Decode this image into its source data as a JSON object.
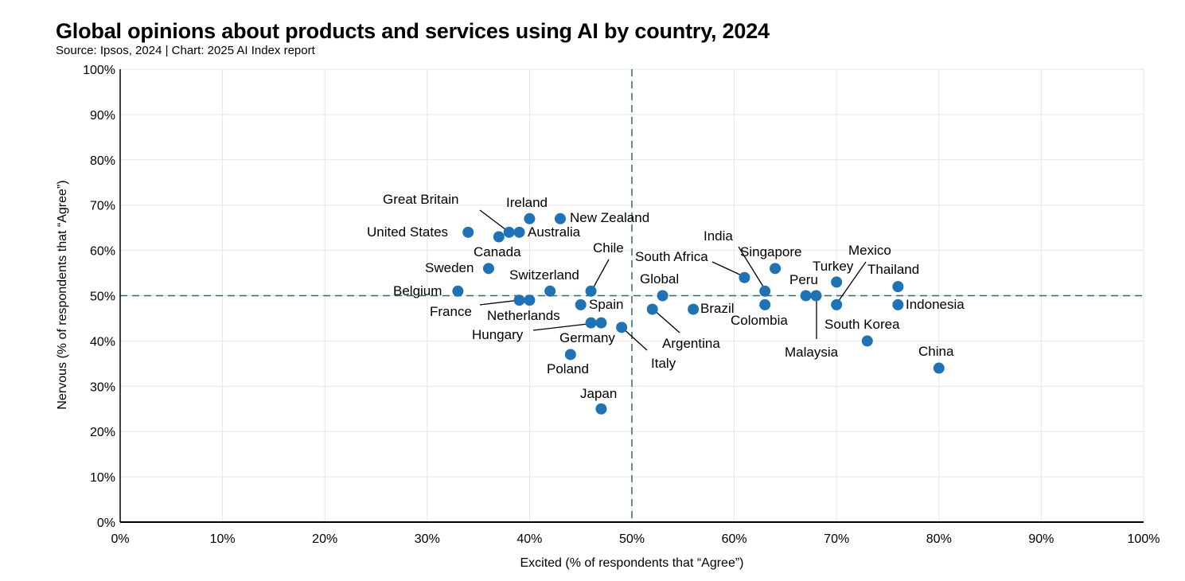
{
  "title": "Global opinions about products and services using AI by country, 2024",
  "subtitle": "Source: Ipsos, 2024 | Chart: 2025 AI Index report",
  "colors": {
    "point": "#1f72b3",
    "grid": "#e6e6e6",
    "reference": "#2e6b66",
    "axis": "#000000"
  },
  "chart_data": {
    "type": "scatter",
    "title": "Global opinions about products and services using AI by country, 2024",
    "xlabel": "Excited (% of respondents that “Agree”)",
    "ylabel": "Nervous (% of respondents that “Agree”)",
    "xlim": [
      0,
      100
    ],
    "ylim": [
      0,
      100
    ],
    "xticks": [
      "0%",
      "10%",
      "20%",
      "30%",
      "40%",
      "50%",
      "60%",
      "70%",
      "80%",
      "90%",
      "100%"
    ],
    "yticks": [
      "0%",
      "10%",
      "20%",
      "30%",
      "40%",
      "50%",
      "60%",
      "70%",
      "80%",
      "90%",
      "100%"
    ],
    "reference_lines": {
      "x": 50,
      "y": 50
    },
    "grid": true,
    "points": [
      {
        "name": "United States",
        "x": 34,
        "y": 64
      },
      {
        "name": "Canada",
        "x": 37,
        "y": 63
      },
      {
        "name": "Great Britain",
        "x": 38,
        "y": 64
      },
      {
        "name": "Australia",
        "x": 39,
        "y": 64
      },
      {
        "name": "Ireland",
        "x": 40,
        "y": 67
      },
      {
        "name": "New Zealand",
        "x": 43,
        "y": 67
      },
      {
        "name": "Sweden",
        "x": 36,
        "y": 56
      },
      {
        "name": "Belgium",
        "x": 33,
        "y": 51
      },
      {
        "name": "Switzerland",
        "x": 42,
        "y": 51
      },
      {
        "name": "Chile",
        "x": 46,
        "y": 51
      },
      {
        "name": "France",
        "x": 39,
        "y": 49
      },
      {
        "name": "Netherlands",
        "x": 40,
        "y": 49
      },
      {
        "name": "Spain",
        "x": 45,
        "y": 48
      },
      {
        "name": "Hungary",
        "x": 47,
        "y": 44
      },
      {
        "name": "Germany",
        "x": 46,
        "y": 44
      },
      {
        "name": "Italy",
        "x": 49,
        "y": 43
      },
      {
        "name": "Poland",
        "x": 44,
        "y": 37
      },
      {
        "name": "Japan",
        "x": 47,
        "y": 25
      },
      {
        "name": "Global",
        "x": 53,
        "y": 50
      },
      {
        "name": "Argentina",
        "x": 52,
        "y": 47
      },
      {
        "name": "Brazil",
        "x": 56,
        "y": 47
      },
      {
        "name": "South Africa",
        "x": 61,
        "y": 54
      },
      {
        "name": "India",
        "x": 63,
        "y": 51
      },
      {
        "name": "Colombia",
        "x": 63,
        "y": 48
      },
      {
        "name": "Singapore",
        "x": 64,
        "y": 56
      },
      {
        "name": "Peru",
        "x": 67,
        "y": 50
      },
      {
        "name": "Malaysia",
        "x": 68,
        "y": 50
      },
      {
        "name": "Turkey",
        "x": 70,
        "y": 53
      },
      {
        "name": "Mexico",
        "x": 70,
        "y": 48
      },
      {
        "name": "South Korea",
        "x": 73,
        "y": 40
      },
      {
        "name": "Thailand",
        "x": 76,
        "y": 52
      },
      {
        "name": "Indonesia",
        "x": 76,
        "y": 48
      },
      {
        "name": "China",
        "x": 80,
        "y": 34
      }
    ]
  }
}
